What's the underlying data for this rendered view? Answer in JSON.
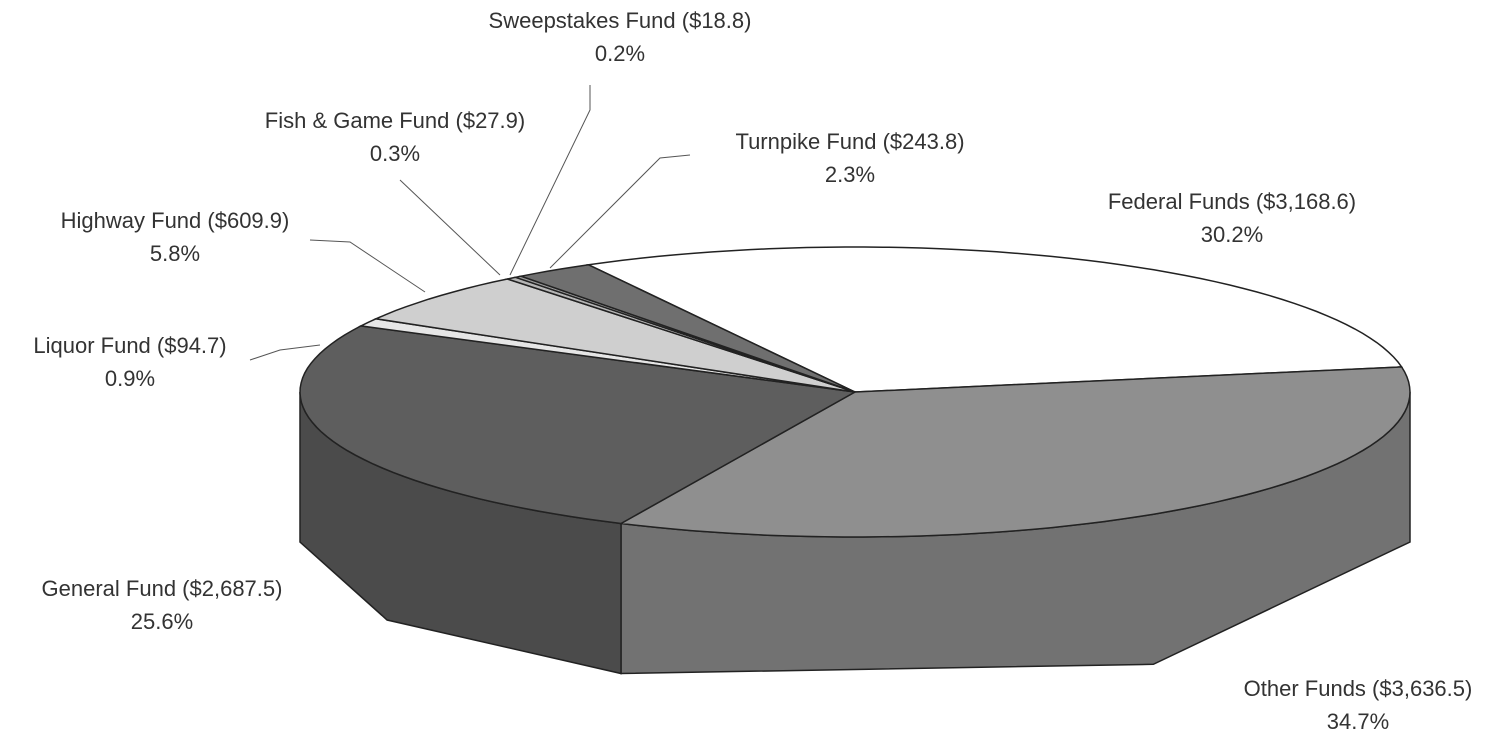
{
  "chart_data": {
    "type": "pie3d",
    "categories": [
      "Federal Funds ($3,168.6)",
      "Other Funds ($3,636.5)",
      "General Fund ($2,687.5)",
      "Liquor Fund ($94.7)",
      "Highway Fund ($609.9)",
      "Fish & Game Fund ($27.9)",
      "Sweepstakes Fund ($18.8)",
      "Turnpike Fund ($243.8)"
    ],
    "values": [
      30.2,
      34.7,
      25.6,
      0.9,
      5.8,
      0.3,
      0.2,
      2.3
    ],
    "value_labels": [
      "30.2%",
      "34.7%",
      "25.6%",
      "0.9%",
      "5.8%",
      "0.3%",
      "0.2%",
      "2.3%"
    ],
    "colors": [
      "#ffffff",
      "#8f8f8f",
      "#5e5e5e",
      "#e6e6e6",
      "#cfcfcf",
      "#b5b5b5",
      "#9c9c9c",
      "#6f6f6f"
    ]
  }
}
